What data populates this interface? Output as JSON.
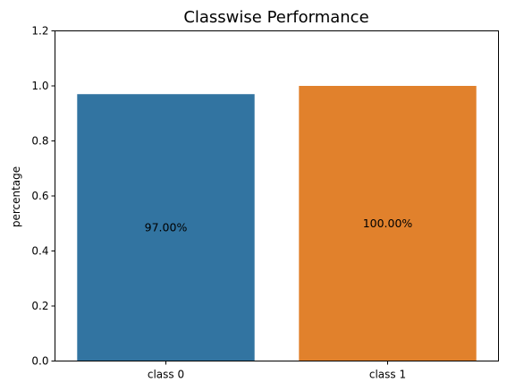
{
  "chart_data": {
    "type": "bar",
    "title": "Classwise Performance",
    "xlabel": "",
    "ylabel": "percentage",
    "categories": [
      "class 0",
      "class 1"
    ],
    "values": [
      0.97,
      1.0
    ],
    "data_labels": [
      "97.00%",
      "100.00%"
    ],
    "colors": [
      "#3274a1",
      "#e1812c"
    ],
    "ylim": [
      0,
      1.2
    ],
    "yticks": [
      0.0,
      0.2,
      0.4,
      0.6,
      0.8,
      1.0,
      1.2
    ],
    "ytick_labels": [
      "0.0",
      "0.2",
      "0.4",
      "0.6",
      "0.8",
      "1.0",
      "1.2"
    ],
    "grid": false,
    "legend": "none"
  }
}
